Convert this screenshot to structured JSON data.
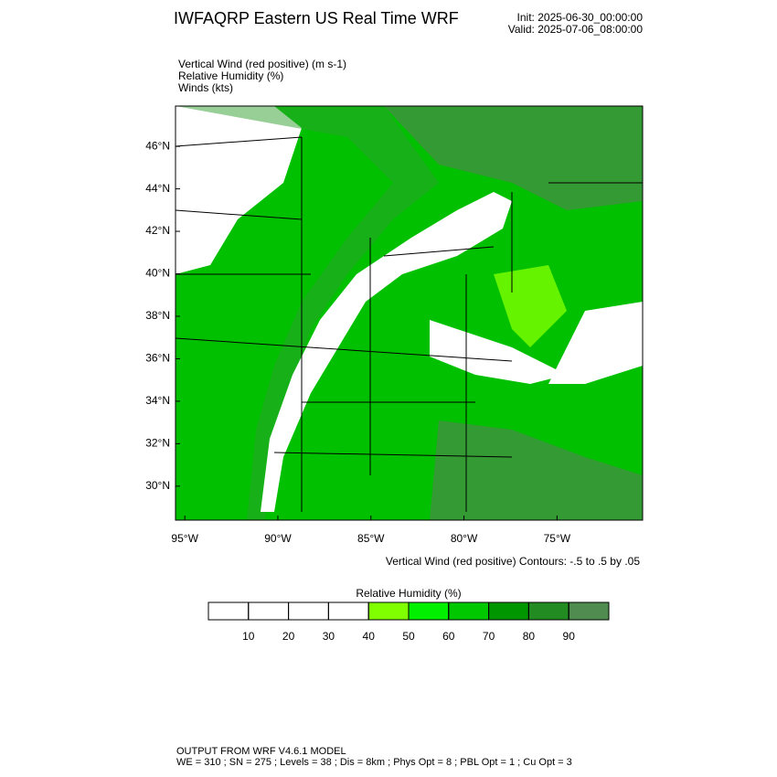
{
  "header": {
    "title": "IWFAQRP Eastern US Real Time WRF",
    "init": "Init: 2025-06-30_00:00:00",
    "valid": "Valid: 2025-07-06_08:00:00"
  },
  "fields": [
    "Vertical Wind (red positive)   (m s-1)",
    "Relative Humidity   (%)",
    "Winds   (kts)"
  ],
  "map": {
    "lonlim": [
      -95.5,
      -70.4
    ],
    "latlim": [
      28.4,
      47.9
    ],
    "lat_ticks": [
      {
        "value": 46,
        "label": "46°N"
      },
      {
        "value": 44,
        "label": "44°N"
      },
      {
        "value": 42,
        "label": "42°N"
      },
      {
        "value": 40,
        "label": "40°N"
      },
      {
        "value": 38,
        "label": "38°N"
      },
      {
        "value": 36,
        "label": "36°N"
      },
      {
        "value": 34,
        "label": "34°N"
      },
      {
        "value": 32,
        "label": "32°N"
      },
      {
        "value": 30,
        "label": "30°N"
      }
    ],
    "lon_ticks": [
      {
        "value": -95,
        "label": "95°W"
      },
      {
        "value": -90,
        "label": "90°W"
      },
      {
        "value": -85,
        "label": "85°W"
      },
      {
        "value": -80,
        "label": "80°W"
      },
      {
        "value": -75,
        "label": "75°W"
      }
    ],
    "contour_note": "Vertical Wind (red positive) Contours: -.5 to .5 by .05"
  },
  "colorbar": {
    "title": "Relative Humidity  (%)",
    "ticks": [
      10,
      20,
      30,
      40,
      50,
      60,
      70,
      80,
      90
    ],
    "colors": [
      "#ffffff",
      "#ffffff",
      "#ffffff",
      "#ffffff",
      "#80ff00",
      "#00f000",
      "#00c800",
      "#009600",
      "#228b22",
      "#508c50"
    ]
  },
  "footer": [
    "OUTPUT FROM WRF V4.6.1 MODEL",
    "WE = 310 ; SN = 275 ; Levels = 38 ; Dis = 8km ; Phys Opt = 8 ; PBL Opt = 1 ; Cu Opt = 3"
  ]
}
